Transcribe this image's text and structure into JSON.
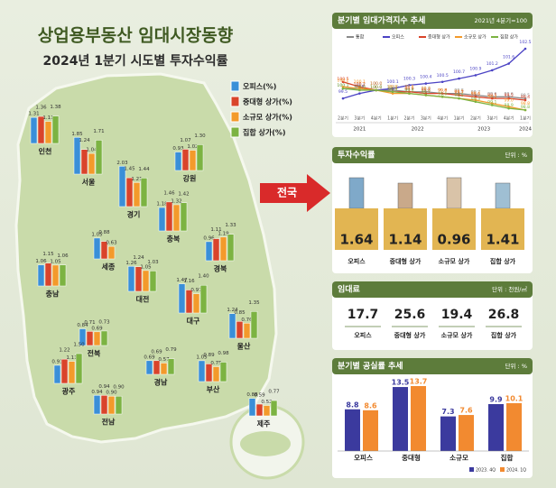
{
  "header": {
    "title": "상업용부동산 임대시장동향",
    "subtitle": "2024년 1분기 시도별 투자수익률"
  },
  "map": {
    "legend": [
      "오피스(%)",
      "중대형 상가(%)",
      "소규모 상가(%)",
      "집합 상가(%)"
    ],
    "colors": [
      "#3a8fd8",
      "#d9442b",
      "#f39a2b",
      "#7cb342"
    ],
    "regions": [
      {
        "name": "인천",
        "values": [
          1.31,
          1.36,
          1.11,
          1.38
        ]
      },
      {
        "name": "서울",
        "values": [
          1.85,
          1.24,
          1.04,
          1.71
        ]
      },
      {
        "name": "강원",
        "values": [
          0.93,
          1.07,
          1.02,
          1.3
        ],
        "value_labels": [
          "0.93",
          "1.07",
          "1.02",
          "1.30"
        ]
      },
      {
        "name": "경기",
        "values": [
          2.03,
          1.45,
          1.21,
          1.44
        ]
      },
      {
        "name": "충북",
        "values": [
          1.18,
          1.46,
          1.32,
          1.42
        ]
      },
      {
        "name": "세종",
        "values": [
          1.05,
          0.88,
          0.63,
          null
        ]
      },
      {
        "name": "경북",
        "values": [
          0.96,
          1.11,
          1.19,
          1.33
        ]
      },
      {
        "name": "충남",
        "values": [
          1.06,
          1.15,
          1.05,
          1.06
        ]
      },
      {
        "name": "대전",
        "values": [
          1.26,
          1.24,
          1.05,
          1.03
        ]
      },
      {
        "name": "대구",
        "values": [
          1.47,
          1.16,
          0.97,
          1.4
        ],
        "value_labels": [
          "1.47",
          "1.16",
          "0.97",
          "1.40"
        ]
      },
      {
        "name": "전북",
        "values": [
          0.84,
          0.71,
          0.69,
          0.73
        ]
      },
      {
        "name": "울산",
        "values": [
          1.24,
          0.85,
          0.76,
          1.35
        ]
      },
      {
        "name": "광주",
        "values": [
          0.91,
          1.22,
          1.11,
          1.5
        ],
        "value_labels": [
          "0.91",
          "1.22",
          "1.11",
          "1.50"
        ]
      },
      {
        "name": "경남",
        "values": [
          0.69,
          0.69,
          0.57,
          0.79
        ]
      },
      {
        "name": "부산",
        "values": [
          1.05,
          0.89,
          0.75,
          0.98
        ]
      },
      {
        "name": "전남",
        "values": [
          0.94,
          0.94,
          0.9,
          0.9
        ],
        "value_labels": [
          "0.94",
          "0.94",
          "0.90",
          "0.90"
        ]
      },
      {
        "name": "제주",
        "values": [
          0.88,
          0.59,
          0.52,
          0.77
        ]
      }
    ],
    "arrow_label": "전국"
  },
  "price_index": {
    "type": "line",
    "title": "분기별 임대가격지수 추세",
    "note": "2021년 4분기=100",
    "categories": [
      "2분기",
      "3분기",
      "4분기",
      "1분기",
      "2분기",
      "3분기",
      "4분기",
      "1분기",
      "2분기",
      "3분기",
      "4분기",
      "1분기"
    ],
    "years": [
      "2021",
      "2022",
      "2023",
      "2024"
    ],
    "series": [
      {
        "name": "통합",
        "color": "#8a8a8a",
        "values": [
          100.1,
          100.1,
          100,
          100,
          99.9,
          99.9,
          99.8,
          99.8,
          99.7,
          99.6,
          99.6,
          99.5
        ],
        "value_labels": [
          "100.1",
          "100.1",
          "100.0",
          "100.0",
          "99.9",
          "99.9",
          "99.8",
          "99.8",
          "99.7",
          "99.6",
          "99.6",
          "99.5"
        ]
      },
      {
        "name": "오피스",
        "color": "#4b43c4",
        "values": [
          99.5,
          99.8,
          100,
          100.1,
          100.3,
          100.4,
          100.5,
          100.7,
          100.9,
          101.2,
          101.6,
          102.5
        ],
        "value_labels": [
          "99.5",
          "99.8",
          "100.0",
          "100.1",
          "100.3",
          "100.4",
          "100.5",
          "100.7",
          "100.9",
          "101.2",
          "101.6",
          "102.5"
        ]
      },
      {
        "name": "중대형 상가",
        "color": "#d9442b",
        "values": [
          100.5,
          100.2,
          100,
          99.9,
          99.9,
          99.8,
          99.8,
          99.7,
          99.6,
          99.5,
          99.5,
          99.4
        ],
        "value_labels": [
          "100.5",
          "100.2",
          "100.0",
          "99.9",
          "99.9",
          "99.8",
          "99.8",
          "99.7",
          "99.6",
          "99.5",
          "99.5",
          "99.4"
        ]
      },
      {
        "name": "소규모 상가",
        "color": "#f39a2b",
        "values": [
          100.2,
          100.1,
          100,
          99.8,
          99.8,
          99.7,
          99.6,
          99.5,
          99.4,
          99.2,
          99,
          98.8
        ],
        "value_labels": [
          "100.2",
          "100.1",
          "100.0",
          "99.8",
          "99.8",
          "99.7",
          "99.6",
          "99.5",
          "99.4",
          "99.2",
          "99.0",
          "98.8"
        ]
      },
      {
        "name": "집합 상가",
        "color": "#7cb342",
        "values": [
          100.1,
          100,
          100,
          99.9,
          99.8,
          99.7,
          99.6,
          99.5,
          99.3,
          99.1,
          98.9,
          98.8
        ],
        "value_labels": [
          "100.1",
          "100.0",
          "100.0",
          "99.9",
          "99.8",
          "99.7",
          "99.6",
          "99.5",
          "99.3",
          "99.1",
          "98.9",
          "98.8"
        ]
      }
    ]
  },
  "returns": {
    "title": "투자수익률",
    "unit": "단위 : %",
    "categories": [
      "오피스",
      "중대형 상가",
      "소규모 상가",
      "집합 상가"
    ],
    "values": [
      1.64,
      1.14,
      0.96,
      1.41
    ]
  },
  "rent": {
    "title": "임대료",
    "unit": "단위 : 천원/㎡",
    "categories": [
      "오피스",
      "중대형 상가",
      "소규모 상가",
      "집합 상가"
    ],
    "values": [
      17.7,
      25.6,
      19.4,
      26.8
    ]
  },
  "vacancy": {
    "type": "bar",
    "title": "분기별 공실률 추세",
    "unit": "단위 : %",
    "categories": [
      "오피스",
      "중대형",
      "소규모",
      "집합"
    ],
    "series": [
      {
        "name": "2023. 4Q",
        "color": "#3b3a9e",
        "values": [
          8.8,
          13.5,
          7.3,
          9.9
        ]
      },
      {
        "name": "2024. 1Q",
        "color": "#f28a30",
        "values": [
          8.6,
          13.7,
          7.6,
          10.1
        ]
      }
    ]
  }
}
